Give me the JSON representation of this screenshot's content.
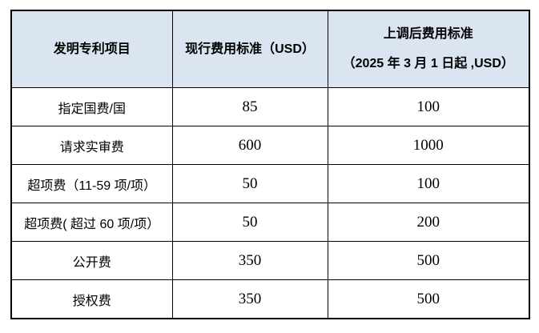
{
  "table": {
    "colors": {
      "header_bg": "#dbe5f1",
      "border": "#000000",
      "text": "#000000"
    },
    "headers": {
      "col1": "发明专利项目",
      "col2": "现行费用标准（USD）",
      "col3_line1": "上调后费用标准",
      "col3_line2": "（2025 年 3 月 1 日起 ,USD）"
    },
    "rows": [
      {
        "item": "指定国费/国",
        "current": "85",
        "updated": "100"
      },
      {
        "item": "请求实审费",
        "current": "600",
        "updated": "1000"
      },
      {
        "item": "超项费（11-59 项/项）",
        "current": "50",
        "updated": "100"
      },
      {
        "item": "超项费( 超过 60 项/项）",
        "current": "50",
        "updated": "200"
      },
      {
        "item": "公开费",
        "current": "350",
        "updated": "500"
      },
      {
        "item": "授权费",
        "current": "350",
        "updated": "500"
      }
    ]
  }
}
